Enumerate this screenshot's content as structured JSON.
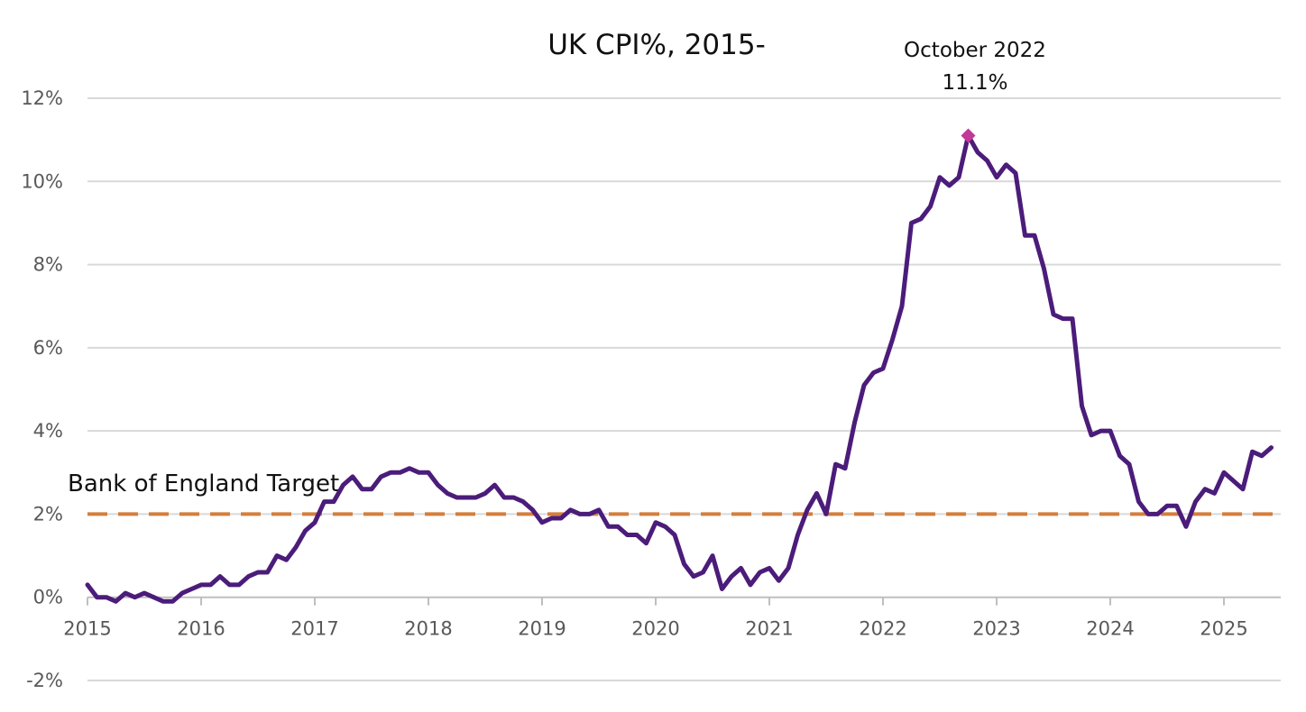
{
  "chart_data": {
    "type": "line",
    "title": "UK CPI%, 2015-",
    "xlabel": "",
    "ylabel": "",
    "y_ticks": [
      "-2%",
      "0%",
      "2%",
      "4%",
      "6%",
      "8%",
      "10%",
      "12%"
    ],
    "ylim": [
      -2,
      12
    ],
    "x_ticks": [
      "2015",
      "2016",
      "2017",
      "2018",
      "2019",
      "2020",
      "2021",
      "2022",
      "2023",
      "2024",
      "2025"
    ],
    "xlim_years": [
      2015.0,
      2025.5
    ],
    "grid": "horizontal",
    "colors": {
      "series": "#4b1c7a",
      "target": "#d47f3c",
      "peak_marker": "#c2399a",
      "grid": "#d9d9d9",
      "axis": "#bfbfbf"
    },
    "series": [
      {
        "start": "2015-01",
        "frequency": "monthly",
        "values": [
          0.3,
          0.0,
          0.0,
          -0.1,
          0.1,
          0.0,
          0.1,
          0.0,
          -0.1,
          -0.1,
          0.1,
          0.2,
          0.3,
          0.3,
          0.5,
          0.3,
          0.3,
          0.5,
          0.6,
          0.6,
          1.0,
          0.9,
          1.2,
          1.6,
          1.8,
          2.3,
          2.3,
          2.7,
          2.9,
          2.6,
          2.6,
          2.9,
          3.0,
          3.0,
          3.1,
          3.0,
          3.0,
          2.7,
          2.5,
          2.4,
          2.4,
          2.4,
          2.5,
          2.7,
          2.4,
          2.4,
          2.3,
          2.1,
          1.8,
          1.9,
          1.9,
          2.1,
          2.0,
          2.0,
          2.1,
          1.7,
          1.7,
          1.5,
          1.5,
          1.3,
          1.8,
          1.7,
          1.5,
          0.8,
          0.5,
          0.6,
          1.0,
          0.2,
          0.5,
          0.7,
          0.3,
          0.6,
          0.7,
          0.4,
          0.7,
          1.5,
          2.1,
          2.5,
          2.0,
          3.2,
          3.1,
          4.2,
          5.1,
          5.4,
          5.5,
          6.2,
          7.0,
          9.0,
          9.1,
          9.4,
          10.1,
          9.9,
          10.1,
          11.1,
          10.7,
          10.5,
          10.1,
          10.4,
          10.2,
          8.7,
          8.7,
          7.9,
          6.8,
          6.7,
          6.7,
          4.6,
          3.9,
          4.0,
          4.0,
          3.4,
          3.2,
          2.3,
          2.0,
          2.0,
          2.2,
          2.2,
          1.7,
          2.3,
          2.6,
          2.5,
          3.0,
          2.8,
          2.6,
          3.5,
          3.4,
          3.6
        ]
      }
    ],
    "target": {
      "label": "Bank of England Target",
      "value": 2
    },
    "peak_annotation": {
      "month": "2022-10",
      "value": 11.1,
      "line1": "October 2022",
      "line2": "11.1%"
    }
  }
}
